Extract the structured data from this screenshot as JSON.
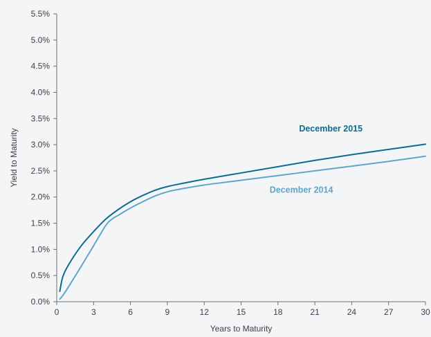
{
  "chart_data": {
    "type": "line",
    "title": "",
    "xlabel": "Years to Maturity",
    "ylabel": "Yield to Maturity",
    "xlim": [
      0,
      30
    ],
    "ylim": [
      0,
      5.5
    ],
    "xticks": [
      0,
      3,
      6,
      9,
      12,
      15,
      18,
      21,
      24,
      27,
      30
    ],
    "xtick_labels": [
      "0",
      "3",
      "6",
      "9",
      "12",
      "15",
      "18",
      "21",
      "24",
      "27",
      "30"
    ],
    "yticks": [
      0,
      0.5,
      1.0,
      1.5,
      2.0,
      2.5,
      3.0,
      3.5,
      4.0,
      4.5,
      5.0,
      5.5
    ],
    "ytick_labels": [
      "0.0%",
      "0.5%",
      "1.0%",
      "1.5%",
      "2.0%",
      "2.5%",
      "3.0%",
      "3.5%",
      "4.0%",
      "4.5%",
      "5.0%",
      "5.5%"
    ],
    "grid": false,
    "series": [
      {
        "name": "December 2015",
        "color": "#0e6a8f",
        "x": [
          0.25,
          0.5,
          1,
          2,
          3,
          4,
          5,
          6,
          7,
          8,
          9,
          10,
          12,
          15,
          18,
          21,
          24,
          27,
          30
        ],
        "y": [
          0.2,
          0.48,
          0.72,
          1.07,
          1.34,
          1.58,
          1.76,
          1.91,
          2.03,
          2.13,
          2.2,
          2.25,
          2.34,
          2.46,
          2.58,
          2.7,
          2.81,
          2.91,
          3.01
        ]
      },
      {
        "name": "December 2014",
        "color": "#5ea6c8",
        "x": [
          0.25,
          0.5,
          1,
          2,
          3,
          4,
          4.5,
          5,
          6,
          7,
          8,
          9,
          10,
          12,
          15,
          18,
          21,
          24,
          27,
          30
        ],
        "y": [
          0.05,
          0.12,
          0.3,
          0.68,
          1.07,
          1.46,
          1.58,
          1.65,
          1.79,
          1.91,
          2.02,
          2.1,
          2.15,
          2.23,
          2.32,
          2.41,
          2.5,
          2.59,
          2.68,
          2.78
        ]
      }
    ],
    "annotations": [
      {
        "text": "December 2015",
        "series": 0,
        "color": "#0e6a8f",
        "x": 22.3,
        "y": 3.25
      },
      {
        "text": "December 2014",
        "series": 1,
        "color": "#5ea6c8",
        "x": 19.9,
        "y": 2.08
      }
    ]
  }
}
